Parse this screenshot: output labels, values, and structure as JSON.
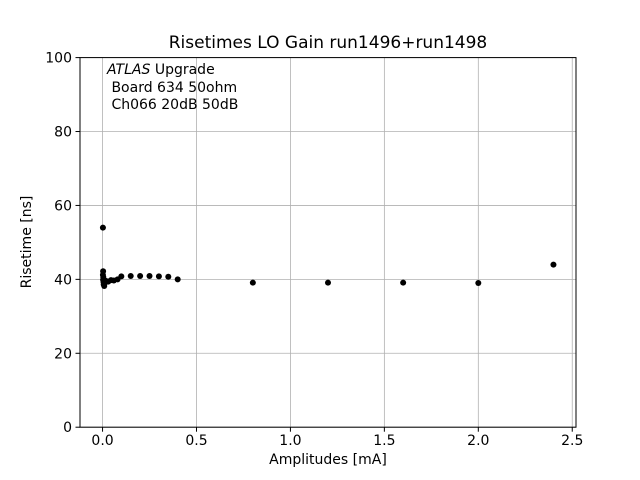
{
  "chart_data": {
    "type": "scatter",
    "title": "Risetimes LO Gain run1496+run1498",
    "xlabel": "Amplitudes [mA]",
    "ylabel": "Risetime [ns]",
    "xlim": [
      -0.12,
      2.52
    ],
    "ylim": [
      0,
      100
    ],
    "xticks": {
      "values": [
        0,
        0.5,
        1.0,
        1.5,
        2.0,
        2.5
      ],
      "labels": [
        "0.0",
        "0.5",
        "1.0",
        "1.5",
        "2.0",
        "2.5"
      ]
    },
    "yticks": {
      "values": [
        0,
        20,
        40,
        60,
        80,
        100
      ],
      "labels": [
        "0",
        "20",
        "40",
        "60",
        "80",
        "100"
      ]
    },
    "grid": true,
    "legend": false,
    "annotation": {
      "line1_italic": "ATLAS",
      "line1_rest": " Upgrade",
      "line2": " Board 634 50ohm",
      "line3": " Ch066 20dB 50dB"
    },
    "marker": {
      "shape": "circle",
      "color": "#000000",
      "radius_px": 3
    },
    "colors": {
      "grid": "#b0b0b0",
      "spine": "#000000",
      "background": "#ffffff",
      "text": "#000000"
    },
    "points": [
      [
        0.002,
        54.0
      ],
      [
        0.003,
        42.2
      ],
      [
        0.002,
        41.2
      ],
      [
        0.004,
        40.6
      ],
      [
        0.003,
        39.9
      ],
      [
        0.005,
        39.3
      ],
      [
        0.006,
        38.6
      ],
      [
        0.009,
        38.2
      ],
      [
        0.012,
        39.0
      ],
      [
        0.018,
        39.6
      ],
      [
        0.03,
        39.4
      ],
      [
        0.045,
        39.8
      ],
      [
        0.06,
        39.7
      ],
      [
        0.08,
        40.0
      ],
      [
        0.1,
        40.8
      ],
      [
        0.15,
        40.9
      ],
      [
        0.2,
        40.9
      ],
      [
        0.25,
        40.9
      ],
      [
        0.3,
        40.8
      ],
      [
        0.35,
        40.7
      ],
      [
        0.4,
        40.0
      ],
      [
        0.8,
        39.1
      ],
      [
        1.2,
        39.1
      ],
      [
        1.6,
        39.1
      ],
      [
        2.0,
        39.0
      ],
      [
        2.4,
        44.0
      ]
    ]
  }
}
